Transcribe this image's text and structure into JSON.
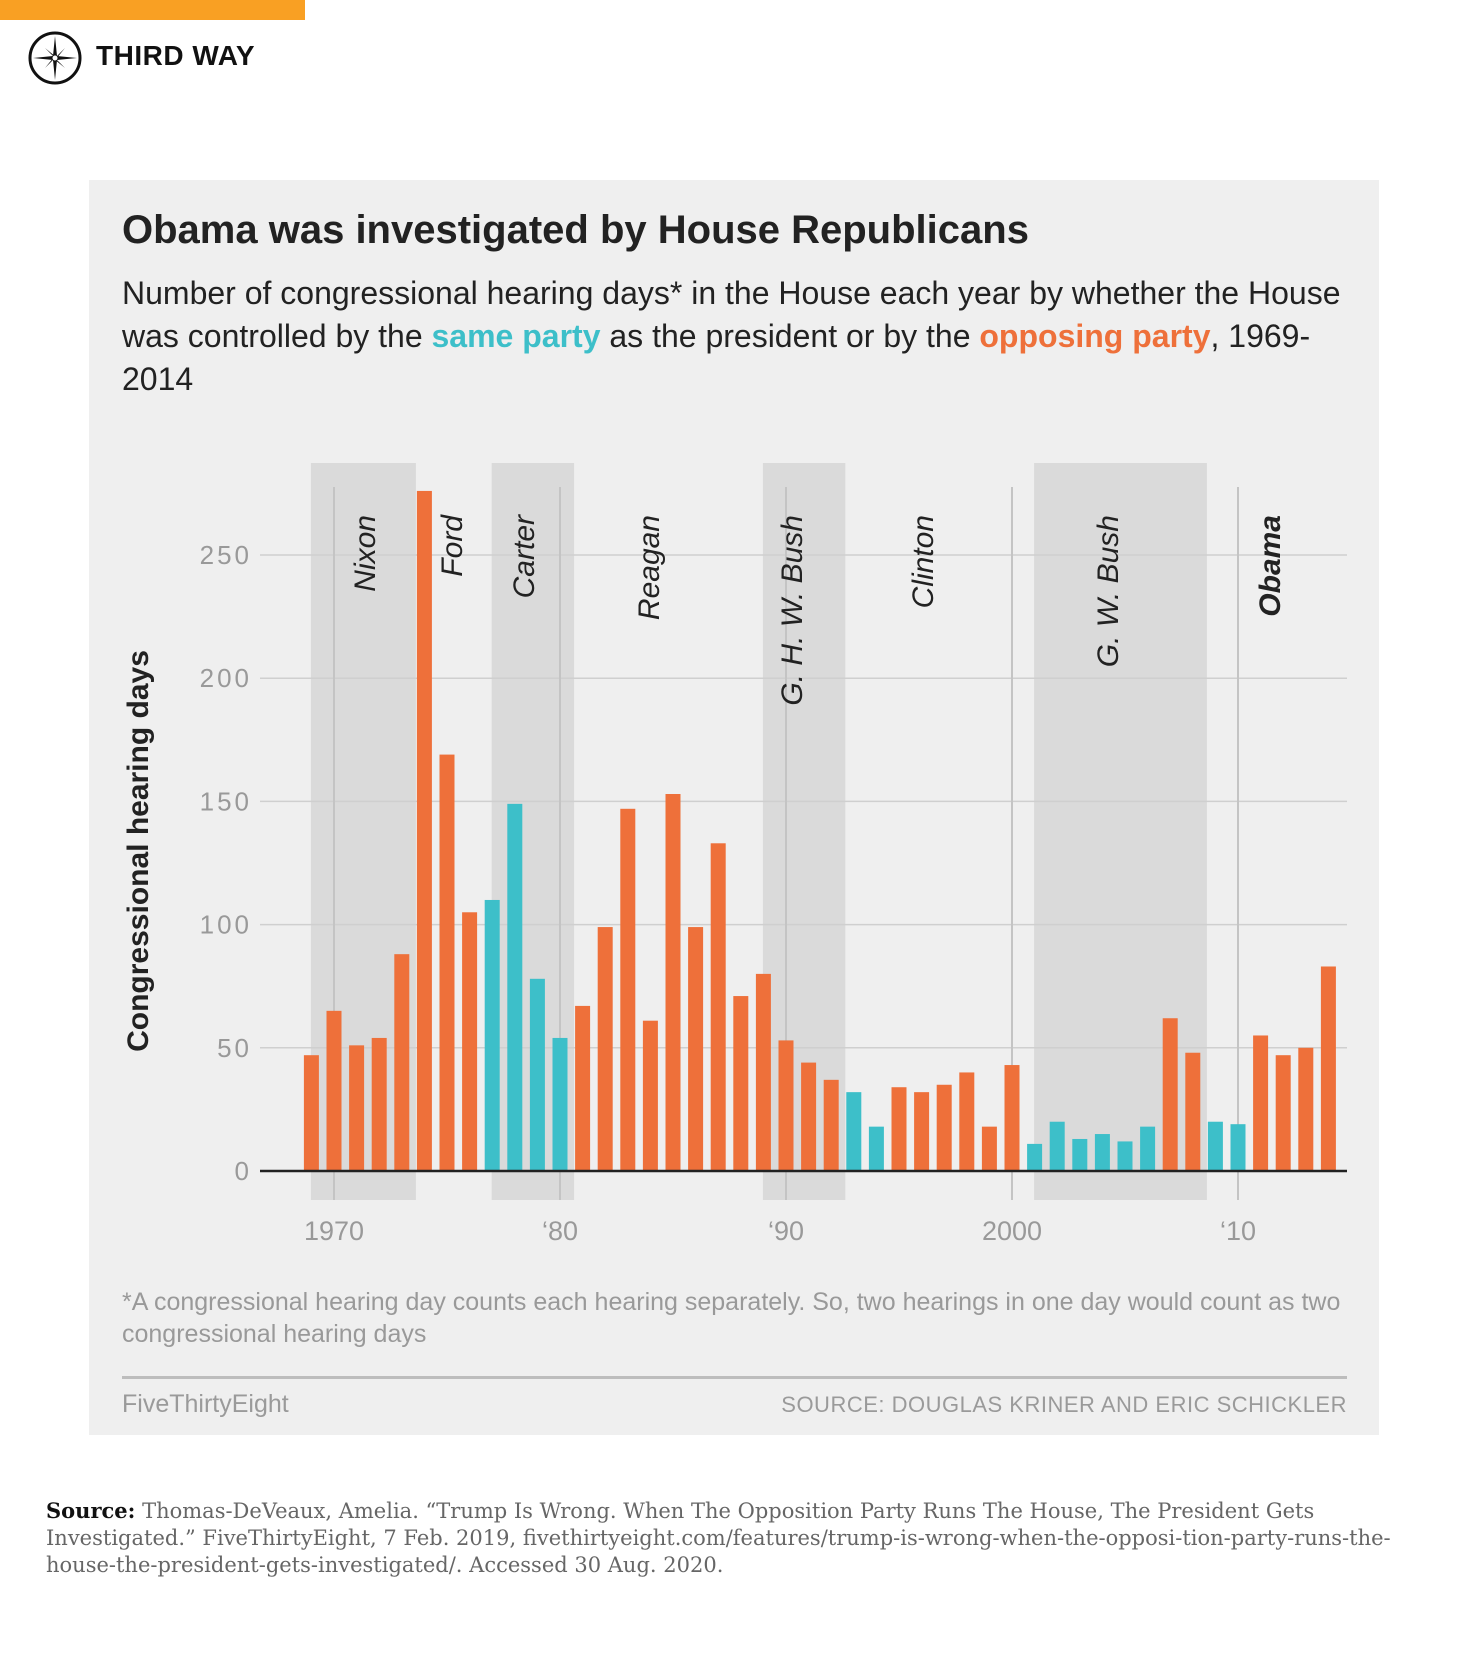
{
  "header": {
    "brand": "THIRD WAY",
    "logo_icon": "compass-star-icon",
    "bar_color": "#f9a023"
  },
  "chart_data": {
    "type": "bar",
    "title": "Obama was investigated by House Republicans",
    "subtitle": {
      "part1": "Number of congressional hearing days* in the House each year by whether the House was controlled by the ",
      "same": "same party",
      "part2": " as the president or by the ",
      "opposing": "opposing party",
      "part3": ", 1969-2014"
    },
    "ylabel": "Congressional hearing days",
    "ylim": [
      0,
      276
    ],
    "yticks": [
      0,
      50,
      100,
      150,
      200,
      250
    ],
    "xticks": [
      {
        "year": 1970,
        "label": "1970"
      },
      {
        "year": 1980,
        "label": "‘80"
      },
      {
        "year": 1990,
        "label": "‘90"
      },
      {
        "year": 2000,
        "label": "2000"
      },
      {
        "year": 2010,
        "label": "‘10"
      }
    ],
    "grid": true,
    "colors": {
      "same": "#3dbfc9",
      "opposing": "#ee703a",
      "shade": "#dadada"
    },
    "years": [
      1969,
      1970,
      1971,
      1972,
      1973,
      1974,
      1975,
      1976,
      1977,
      1978,
      1979,
      1980,
      1981,
      1982,
      1983,
      1984,
      1985,
      1986,
      1987,
      1988,
      1989,
      1990,
      1991,
      1992,
      1993,
      1994,
      1995,
      1996,
      1997,
      1998,
      1999,
      2000,
      2001,
      2002,
      2003,
      2004,
      2005,
      2006,
      2007,
      2008,
      2009,
      2010,
      2011,
      2012,
      2013,
      2014
    ],
    "values": [
      47,
      65,
      51,
      54,
      88,
      276,
      169,
      105,
      110,
      149,
      78,
      54,
      67,
      99,
      147,
      61,
      153,
      99,
      133,
      71,
      80,
      53,
      44,
      37,
      32,
      18,
      34,
      32,
      35,
      40,
      18,
      43,
      11,
      20,
      13,
      15,
      12,
      18,
      62,
      48,
      20,
      19,
      55,
      47,
      50,
      83
    ],
    "party": [
      "opposing",
      "opposing",
      "opposing",
      "opposing",
      "opposing",
      "opposing",
      "opposing",
      "opposing",
      "same",
      "same",
      "same",
      "same",
      "opposing",
      "opposing",
      "opposing",
      "opposing",
      "opposing",
      "opposing",
      "opposing",
      "opposing",
      "opposing",
      "opposing",
      "opposing",
      "opposing",
      "same",
      "same",
      "opposing",
      "opposing",
      "opposing",
      "opposing",
      "opposing",
      "opposing",
      "same",
      "same",
      "same",
      "same",
      "same",
      "same",
      "opposing",
      "opposing",
      "same",
      "same",
      "opposing",
      "opposing",
      "opposing",
      "opposing"
    ],
    "presidents": [
      {
        "name": "Nixon",
        "start": 1969,
        "end": 1974,
        "shaded": true,
        "bold": false
      },
      {
        "name": "Ford",
        "start": 1974,
        "end": 1977,
        "shaded": false,
        "bold": false
      },
      {
        "name": "Carter",
        "start": 1977,
        "end": 1981,
        "shaded": true,
        "bold": false
      },
      {
        "name": "Reagan",
        "start": 1981,
        "end": 1989,
        "shaded": false,
        "bold": false
      },
      {
        "name": "G. H. W. Bush",
        "start": 1989,
        "end": 1993,
        "shaded": true,
        "bold": false
      },
      {
        "name": "Clinton",
        "start": 1993,
        "end": 2001,
        "shaded": false,
        "bold": false
      },
      {
        "name": "G. W. Bush",
        "start": 2001,
        "end": 2009,
        "shaded": true,
        "bold": false
      },
      {
        "name": "Obama",
        "start": 2009,
        "end": 2015,
        "shaded": false,
        "bold": true
      }
    ],
    "footnote": "*A congressional hearing day counts each hearing separately. So, two hearings in one day would count as two congressional hearing days",
    "credit": "FiveThirtyEight",
    "source": "SOURCE: DOUGLAS KRINER AND ERIC SCHICKLER"
  },
  "citation": {
    "label": "Source:",
    "text": " Thomas-DeVeaux, Amelia. “Trump Is Wrong. When The Opposition Party Runs The House, The President Gets Investigated.” FiveThirtyEight, 7 Feb. 2019, fivethirtyeight.com/features/trump-is-wrong-when-the-opposi-tion-party-runs-the-house-the-president-gets-investigated/. Accessed 30 Aug. 2020."
  }
}
